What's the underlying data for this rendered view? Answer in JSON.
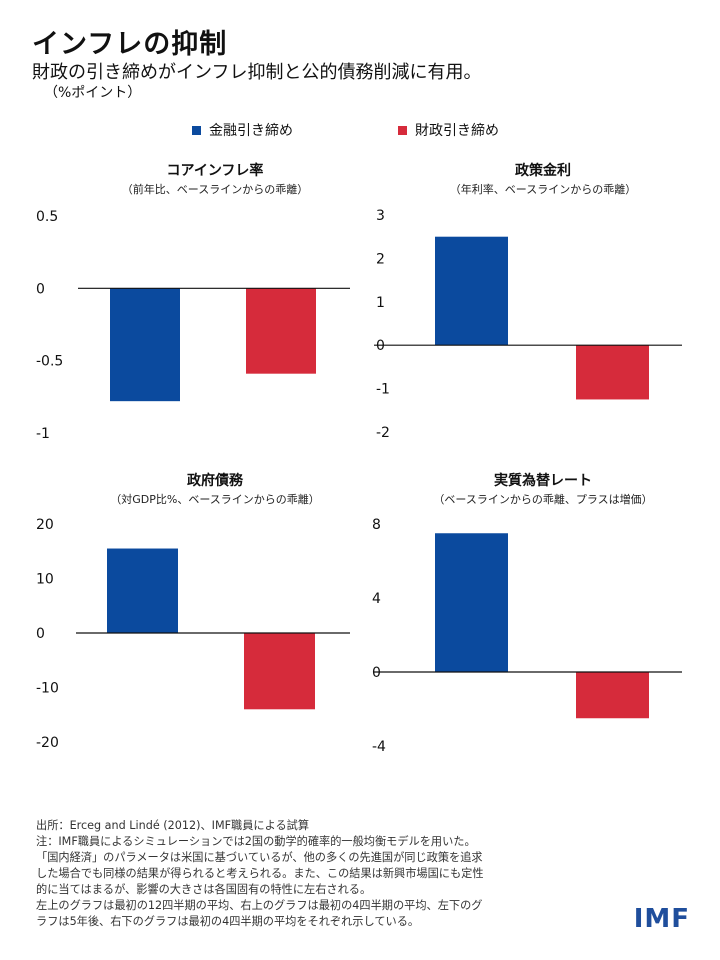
{
  "title": "インフレの抑制",
  "subtitle": "財政の引き締めがインフレ抑制と公的債務削減に有用。",
  "unit": "（%ポイント）",
  "colors": {
    "monetary": "#0b4a9e",
    "fiscal": "#d62b3b",
    "axis": "#111111"
  },
  "legend": [
    {
      "label": "金融引き締め",
      "color": "#0b4a9e"
    },
    {
      "label": "財政引き締め",
      "color": "#d62b3b"
    }
  ],
  "chart_data": [
    {
      "type": "bar",
      "title": "コアインフレ率",
      "subtitle": "（前年比、ベースラインからの乖離）",
      "categories": [
        "金融引き締め",
        "財政引き締め"
      ],
      "values": [
        -0.78,
        -0.59
      ],
      "ylim": [
        -1,
        0.5
      ],
      "yticks": [
        0.5,
        0,
        -0.5,
        -1
      ],
      "ytick_labels": [
        "0.5",
        "0",
        "-0.5",
        "-1"
      ],
      "grid": false
    },
    {
      "type": "bar",
      "title": "政策金利",
      "subtitle": "（年利率、ベースラインからの乖離）",
      "categories": [
        "金融引き締め",
        "財政引き締め"
      ],
      "values": [
        2.5,
        -1.25
      ],
      "ylim": [
        -2,
        3
      ],
      "yticks": [
        3,
        2,
        1,
        0,
        -1,
        -2
      ],
      "ytick_labels": [
        "3",
        "2",
        "1",
        "0",
        "-1",
        "-2"
      ],
      "grid": false
    },
    {
      "type": "bar",
      "title": "政府債務",
      "subtitle": "（対GDP比%、ベースラインからの乖離）",
      "categories": [
        "金融引き締め",
        "財政引き締め"
      ],
      "values": [
        15.5,
        -14.0
      ],
      "ylim": [
        -20,
        20
      ],
      "yticks": [
        20,
        10,
        0,
        -10,
        -20
      ],
      "ytick_labels": [
        "20",
        "10",
        "0",
        "-10",
        "-20"
      ],
      "grid": false
    },
    {
      "type": "bar",
      "title": "実質為替レート",
      "subtitle": "（ベースラインからの乖離、プラスは増価）",
      "categories": [
        "金融引き締め",
        "財政引き締め"
      ],
      "values": [
        7.5,
        -2.5
      ],
      "ylim": [
        -4,
        8
      ],
      "yticks": [
        8,
        4,
        0,
        -4
      ],
      "ytick_labels": [
        "8",
        "4",
        "0",
        "-4"
      ],
      "grid": false
    }
  ],
  "notes": [
    "出所：Erceg and Lindé (2012)、IMF職員による試算",
    "注：IMF職員によるシミュレーションでは2国の動学的確率的一般均衡モデルを用いた。",
    "「国内経済」のパラメータは米国に基づいているが、他の多くの先進国が同じ政策を追求",
    "した場合でも同様の結果が得られると考えられる。また、この結果は新興市場国にも定性",
    "的に当てはまるが、影響の大きさは各国固有の特性に左右される。",
    "左上のグラフは最初の12四半期の平均、右上のグラフは最初の4四半期の平均、左下のグ",
    "ラフは5年後、右下のグラフは最初の4四半期の平均をそれぞれ示している。"
  ],
  "logo": "IMF"
}
